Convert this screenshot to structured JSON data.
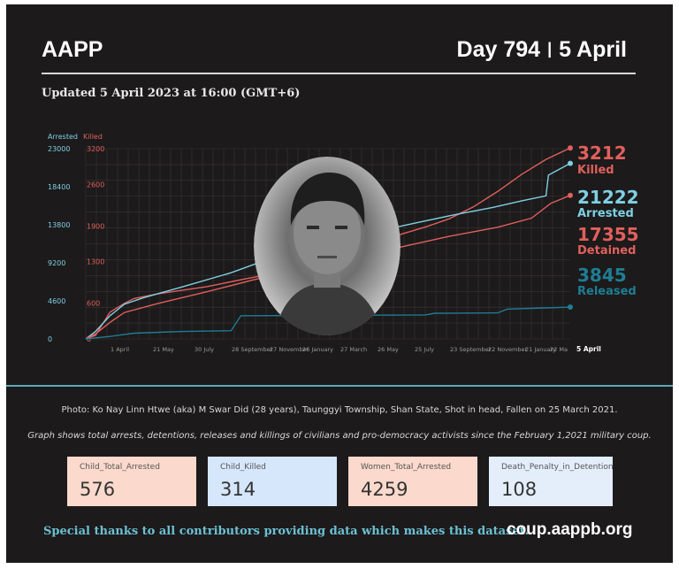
{
  "header": {
    "brand": "AAPP",
    "day": "Day 794",
    "separator": "|",
    "date": "5 April",
    "updated": "Updated 5 April 2023 at 16:00 (GMT+6)"
  },
  "colors": {
    "background": "#1c1a1b",
    "killed": "#e0605c",
    "arrested": "#7fd0e2",
    "detained": "#e0605c",
    "released": "#1f7d93",
    "accent_rule": "#5aa9b6"
  },
  "chart_data": {
    "type": "line",
    "axes": {
      "left_arrested": {
        "title": "Arrested",
        "ylim": [
          0,
          23000
        ],
        "ticks": [
          "23000",
          "18400",
          "13800",
          "9200",
          "4600",
          "0"
        ],
        "tick_values": [
          23000,
          18400,
          13800,
          9200,
          4600,
          0
        ]
      },
      "left_killed": {
        "title": "Killed",
        "ylim": [
          0,
          3200
        ],
        "ticks": [
          "3200",
          "2600",
          "1900",
          "1300",
          "600",
          "0"
        ],
        "tick_values": [
          3200,
          2600,
          1900,
          1300,
          600,
          0
        ]
      }
    },
    "x_ticks": [
      "1 April",
      "21 May",
      "30 July",
      "28 September",
      "27 November",
      "26 January",
      "27 March",
      "26 May",
      "25 July",
      "23 September",
      "22 November",
      "21 January",
      "22 Ma",
      "5 April"
    ],
    "x_tick_positions": [
      0.075,
      0.16,
      0.25,
      0.34,
      0.43,
      0.52,
      0.61,
      0.7,
      0.79,
      0.88,
      0.97,
      1.05,
      1.14,
      1.2
    ],
    "grid": true,
    "series": [
      {
        "name": "Killed",
        "axis": "left_killed",
        "color": "#e0605c",
        "label_value": "3212",
        "label_name": "Killed",
        "x": [
          0,
          0.02,
          0.05,
          0.08,
          0.1,
          0.15,
          0.25,
          0.33,
          0.4,
          0.45,
          0.5,
          0.55,
          0.6,
          0.65,
          0.7,
          0.75,
          0.8,
          0.85,
          0.9,
          0.95,
          1.0
        ],
        "values": [
          0,
          60,
          450,
          600,
          680,
          760,
          880,
          1010,
          1120,
          1240,
          1360,
          1480,
          1620,
          1760,
          1880,
          2020,
          2220,
          2480,
          2770,
          3020,
          3212
        ]
      },
      {
        "name": "Arrested",
        "axis": "left_arrested",
        "color": "#7fd0e2",
        "label_value": "21222",
        "label_name": "Arrested",
        "x": [
          0,
          0.02,
          0.05,
          0.08,
          0.12,
          0.2,
          0.3,
          0.38,
          0.44,
          0.52,
          0.6,
          0.68,
          0.76,
          0.84,
          0.9,
          0.95,
          0.955,
          1.0
        ],
        "values": [
          0,
          900,
          2800,
          4200,
          5000,
          6300,
          8000,
          9700,
          10900,
          12000,
          13000,
          14000,
          15000,
          15900,
          16700,
          17300,
          19800,
          21222
        ]
      },
      {
        "name": "Detained",
        "axis": "left_arrested",
        "color": "#e0605c",
        "label_value": "17355",
        "label_name": "Detained",
        "x": [
          0,
          0.02,
          0.05,
          0.08,
          0.15,
          0.25,
          0.35,
          0.45,
          0.55,
          0.65,
          0.75,
          0.85,
          0.92,
          0.96,
          1.0
        ],
        "values": [
          0,
          600,
          2000,
          3200,
          4300,
          5700,
          7200,
          8400,
          9800,
          11100,
          12400,
          13500,
          14600,
          16400,
          17355
        ]
      },
      {
        "name": "Released",
        "axis": "left_arrested",
        "color": "#1f7d93",
        "label_value": "3845",
        "label_name": "Released",
        "x": [
          0,
          0.05,
          0.1,
          0.15,
          0.2,
          0.3,
          0.32,
          0.5,
          0.7,
          0.72,
          0.85,
          0.87,
          1.0
        ],
        "values": [
          0,
          300,
          700,
          800,
          900,
          1000,
          2800,
          2850,
          2900,
          3100,
          3150,
          3600,
          3845
        ]
      }
    ]
  },
  "photo": {
    "caption": "Photo: Ko Nay Linn Htwe (aka) M Swar Did (28 years), Taunggyi Township, Shan State, Shot in head, Fallen on 25 March 2021."
  },
  "note": "Graph shows total arrests, detentions, releases and killings of civilians and pro-democracy activists since the February 1,2021 military coup.",
  "stats": [
    {
      "label": "Child_Total_Arrested",
      "value": "576",
      "color": "#fbd9cc"
    },
    {
      "label": "Child_Killed",
      "value": "314",
      "color": "#d6e6fb"
    },
    {
      "label": "Women_Total_Arrested",
      "value": "4259",
      "color": "#fbd9cc"
    },
    {
      "label": "Death_Penalty_in_Detention",
      "value": "108",
      "color": "#e4eefb"
    }
  ],
  "footer": {
    "thanks": "Special thanks to all contributors providing data which makes this dataset.",
    "site": "coup.aappb.org"
  }
}
